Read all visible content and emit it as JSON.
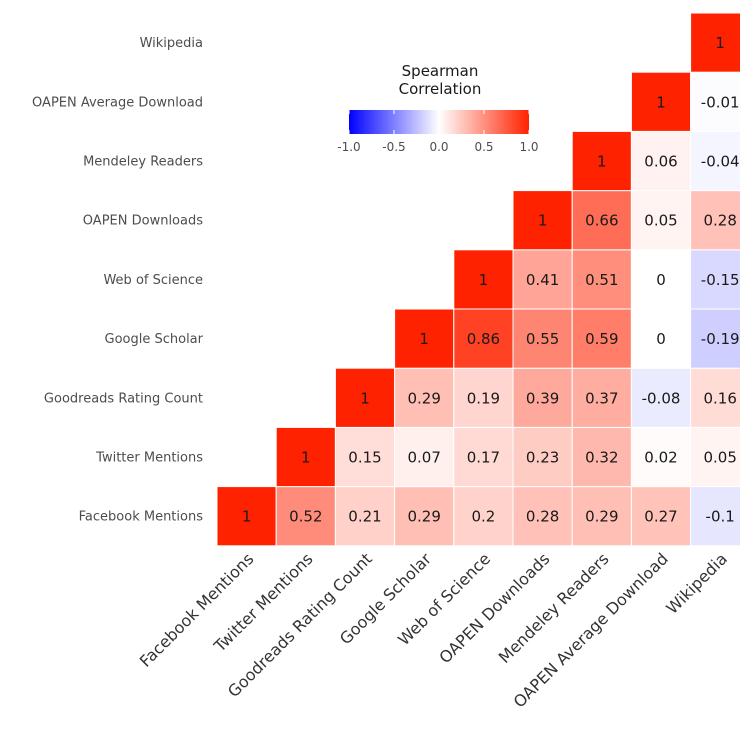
{
  "chart_data": {
    "type": "heatmap",
    "labels": [
      "Facebook Mentions",
      "Twitter Mentions",
      "Goodreads Rating Count",
      "Google Scholar",
      "Web of Science",
      "OAPEN Downloads",
      "Mendeley Readers",
      "OAPEN Average Download",
      "Wikipedia"
    ],
    "cells": [
      {
        "row": "Facebook Mentions",
        "col": "Facebook Mentions",
        "value": 1,
        "label": "1"
      },
      {
        "row": "Facebook Mentions",
        "col": "Twitter Mentions",
        "value": 0.52,
        "label": "0.52"
      },
      {
        "row": "Facebook Mentions",
        "col": "Goodreads Rating Count",
        "value": 0.21,
        "label": "0.21"
      },
      {
        "row": "Facebook Mentions",
        "col": "Google Scholar",
        "value": 0.29,
        "label": "0.29"
      },
      {
        "row": "Facebook Mentions",
        "col": "Web of Science",
        "value": 0.2,
        "label": "0.2"
      },
      {
        "row": "Facebook Mentions",
        "col": "OAPEN Downloads",
        "value": 0.28,
        "label": "0.28"
      },
      {
        "row": "Facebook Mentions",
        "col": "Mendeley Readers",
        "value": 0.29,
        "label": "0.29"
      },
      {
        "row": "Facebook Mentions",
        "col": "OAPEN Average Download",
        "value": 0.27,
        "label": "0.27"
      },
      {
        "row": "Facebook Mentions",
        "col": "Wikipedia",
        "value": -0.1,
        "label": "-0.1"
      },
      {
        "row": "Twitter Mentions",
        "col": "Twitter Mentions",
        "value": 1,
        "label": "1"
      },
      {
        "row": "Twitter Mentions",
        "col": "Goodreads Rating Count",
        "value": 0.15,
        "label": "0.15"
      },
      {
        "row": "Twitter Mentions",
        "col": "Google Scholar",
        "value": 0.07,
        "label": "0.07"
      },
      {
        "row": "Twitter Mentions",
        "col": "Web of Science",
        "value": 0.17,
        "label": "0.17"
      },
      {
        "row": "Twitter Mentions",
        "col": "OAPEN Downloads",
        "value": 0.23,
        "label": "0.23"
      },
      {
        "row": "Twitter Mentions",
        "col": "Mendeley Readers",
        "value": 0.32,
        "label": "0.32"
      },
      {
        "row": "Twitter Mentions",
        "col": "OAPEN Average Download",
        "value": 0.02,
        "label": "0.02"
      },
      {
        "row": "Twitter Mentions",
        "col": "Wikipedia",
        "value": 0.05,
        "label": "0.05"
      },
      {
        "row": "Goodreads Rating Count",
        "col": "Goodreads Rating Count",
        "value": 1,
        "label": "1"
      },
      {
        "row": "Goodreads Rating Count",
        "col": "Google Scholar",
        "value": 0.29,
        "label": "0.29"
      },
      {
        "row": "Goodreads Rating Count",
        "col": "Web of Science",
        "value": 0.19,
        "label": "0.19"
      },
      {
        "row": "Goodreads Rating Count",
        "col": "OAPEN Downloads",
        "value": 0.39,
        "label": "0.39"
      },
      {
        "row": "Goodreads Rating Count",
        "col": "Mendeley Readers",
        "value": 0.37,
        "label": "0.37"
      },
      {
        "row": "Goodreads Rating Count",
        "col": "OAPEN Average Download",
        "value": -0.08,
        "label": "-0.08"
      },
      {
        "row": "Goodreads Rating Count",
        "col": "Wikipedia",
        "value": 0.16,
        "label": "0.16"
      },
      {
        "row": "Google Scholar",
        "col": "Google Scholar",
        "value": 1,
        "label": "1"
      },
      {
        "row": "Google Scholar",
        "col": "Web of Science",
        "value": 0.86,
        "label": "0.86"
      },
      {
        "row": "Google Scholar",
        "col": "OAPEN Downloads",
        "value": 0.55,
        "label": "0.55"
      },
      {
        "row": "Google Scholar",
        "col": "Mendeley Readers",
        "value": 0.59,
        "label": "0.59"
      },
      {
        "row": "Google Scholar",
        "col": "OAPEN Average Download",
        "value": 0,
        "label": "0"
      },
      {
        "row": "Google Scholar",
        "col": "Wikipedia",
        "value": -0.19,
        "label": "-0.19"
      },
      {
        "row": "Web of Science",
        "col": "Web of Science",
        "value": 1,
        "label": "1"
      },
      {
        "row": "Web of Science",
        "col": "OAPEN Downloads",
        "value": 0.41,
        "label": "0.41"
      },
      {
        "row": "Web of Science",
        "col": "Mendeley Readers",
        "value": 0.51,
        "label": "0.51"
      },
      {
        "row": "Web of Science",
        "col": "OAPEN Average Download",
        "value": 0,
        "label": "0"
      },
      {
        "row": "Web of Science",
        "col": "Wikipedia",
        "value": -0.15,
        "label": "-0.15"
      },
      {
        "row": "OAPEN Downloads",
        "col": "OAPEN Downloads",
        "value": 1,
        "label": "1"
      },
      {
        "row": "OAPEN Downloads",
        "col": "Mendeley Readers",
        "value": 0.66,
        "label": "0.66"
      },
      {
        "row": "OAPEN Downloads",
        "col": "OAPEN Average Download",
        "value": 0.05,
        "label": "0.05"
      },
      {
        "row": "OAPEN Downloads",
        "col": "Wikipedia",
        "value": 0.28,
        "label": "0.28"
      },
      {
        "row": "Mendeley Readers",
        "col": "Mendeley Readers",
        "value": 1,
        "label": "1"
      },
      {
        "row": "Mendeley Readers",
        "col": "OAPEN Average Download",
        "value": 0.06,
        "label": "0.06"
      },
      {
        "row": "Mendeley Readers",
        "col": "Wikipedia",
        "value": -0.04,
        "label": "-0.04"
      },
      {
        "row": "OAPEN Average Download",
        "col": "OAPEN Average Download",
        "value": 1,
        "label": "1"
      },
      {
        "row": "OAPEN Average Download",
        "col": "Wikipedia",
        "value": -0.01,
        "label": "-0.01"
      },
      {
        "row": "Wikipedia",
        "col": "Wikipedia",
        "value": 1,
        "label": "1"
      }
    ],
    "color_scale": {
      "min": -1,
      "mid": 0,
      "max": 1,
      "low": "#0000ff",
      "midcolor": "#ffffff",
      "high": "#ff2200"
    },
    "legend": {
      "title_line1": "Spearman",
      "title_line2": "Correlation",
      "ticks": [
        "-1.0",
        "-0.5",
        "0.0",
        "0.5",
        "1.0"
      ],
      "tick_values": [
        -1,
        -0.5,
        0,
        0.5,
        1
      ],
      "placement": "top-center"
    }
  }
}
